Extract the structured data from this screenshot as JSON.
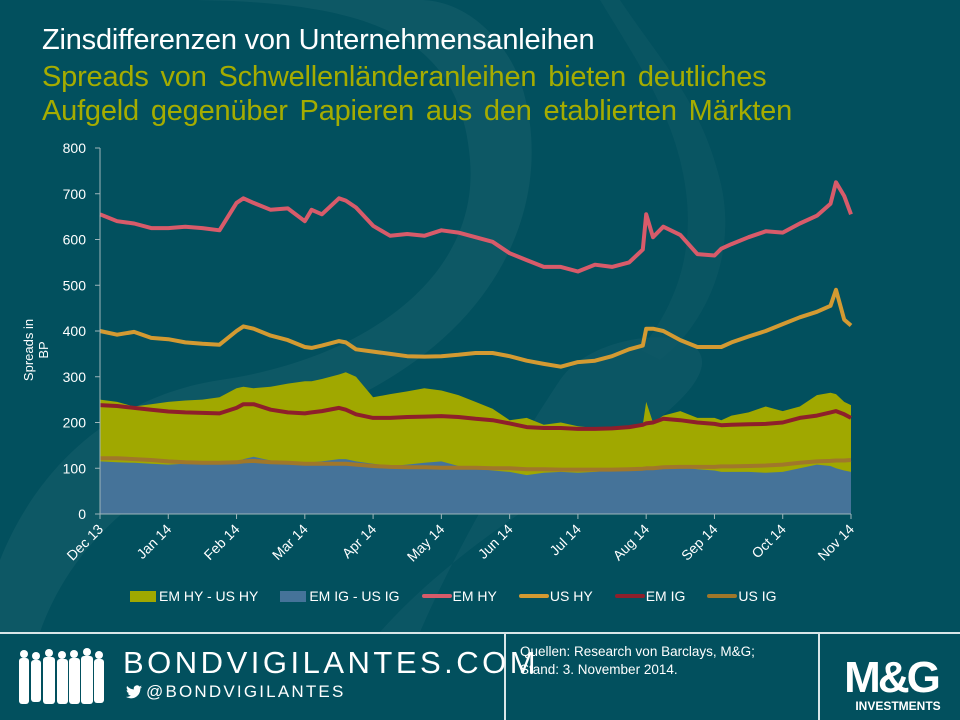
{
  "header": {
    "title": "Zinsdifferenzen von Unternehmensanleihen",
    "subtitle_line1": "Spreads von Schwellenländeranleihen bieten deutliches",
    "subtitle_line2": "Aufgeld gegenüber Papieren aus den etablierten Märkten"
  },
  "colors": {
    "background": "#02505e",
    "title": "#ffffff",
    "subtitle": "#a5ac00",
    "em_hy_us_hy": "#a0a800",
    "em_ig_us_ig": "#457399",
    "em_hy": "#d85b6a",
    "us_hy": "#d39a32",
    "em_ig": "#8e1f2b",
    "us_ig": "#a0772a"
  },
  "chart_data": {
    "type": "area",
    "title": "Zinsdifferenzen von Unternehmensanleihen",
    "xlabel": "",
    "ylabel": "Spreads in BP",
    "ylim": [
      0,
      800
    ],
    "yticks": [
      0,
      100,
      200,
      300,
      400,
      500,
      600,
      700,
      800
    ],
    "xlim": [
      0,
      11
    ],
    "xtick_positions": [
      0,
      1,
      2,
      3,
      4,
      5,
      6,
      7,
      8,
      9,
      10,
      11
    ],
    "xtick_labels": [
      "Dec 13",
      "Jan 14",
      "Feb 14",
      "Mar 14",
      "Apr 14",
      "May 14",
      "Jun 14",
      "Jul 14",
      "Aug 14",
      "Sep 14",
      "Oct 14",
      "Nov 14"
    ],
    "grid": false,
    "legend_position": "bottom",
    "x": [
      0,
      0.25,
      0.5,
      0.75,
      1,
      1.25,
      1.5,
      1.75,
      2,
      2.1,
      2.25,
      2.5,
      2.75,
      3,
      3.1,
      3.25,
      3.5,
      3.6,
      3.75,
      4,
      4.25,
      4.5,
      4.75,
      5,
      5.25,
      5.5,
      5.75,
      6,
      6.25,
      6.5,
      6.75,
      7,
      7.25,
      7.5,
      7.75,
      7.95,
      8,
      8.1,
      8.25,
      8.5,
      8.75,
      9,
      9.1,
      9.25,
      9.5,
      9.75,
      10,
      10.25,
      10.5,
      10.7,
      10.78,
      10.9,
      11
    ],
    "series": [
      {
        "name": "EM HY - US HY",
        "kind": "area",
        "values": [
          250,
          245,
          235,
          240,
          245,
          248,
          250,
          255,
          275,
          278,
          275,
          278,
          285,
          290,
          290,
          295,
          305,
          310,
          300,
          255,
          262,
          268,
          275,
          270,
          260,
          245,
          230,
          205,
          210,
          195,
          200,
          192,
          188,
          190,
          192,
          195,
          245,
          200,
          215,
          225,
          210,
          210,
          205,
          215,
          222,
          235,
          225,
          235,
          260,
          265,
          262,
          245,
          238
        ]
      },
      {
        "name": "EM IG - US IG",
        "kind": "area",
        "values": [
          115,
          113,
          112,
          110,
          108,
          110,
          112,
          110,
          112,
          120,
          125,
          117,
          113,
          110,
          113,
          115,
          120,
          120,
          115,
          110,
          105,
          108,
          112,
          115,
          105,
          100,
          95,
          92,
          85,
          90,
          92,
          90,
          92,
          95,
          98,
          97,
          97,
          100,
          105,
          102,
          98,
          95,
          92,
          92,
          92,
          90,
          92,
          100,
          108,
          105,
          100,
          95,
          92
        ]
      },
      {
        "name": "EM HY",
        "kind": "line",
        "values": [
          655,
          640,
          635,
          625,
          625,
          628,
          625,
          620,
          680,
          690,
          680,
          665,
          668,
          640,
          665,
          655,
          690,
          685,
          670,
          630,
          608,
          612,
          608,
          620,
          615,
          605,
          595,
          570,
          555,
          540,
          540,
          530,
          545,
          540,
          550,
          578,
          655,
          605,
          628,
          610,
          568,
          565,
          580,
          590,
          605,
          618,
          615,
          635,
          652,
          678,
          725,
          695,
          655
        ]
      },
      {
        "name": "US HY",
        "kind": "line",
        "values": [
          400,
          392,
          398,
          385,
          382,
          375,
          372,
          370,
          400,
          410,
          405,
          390,
          380,
          365,
          363,
          368,
          378,
          375,
          360,
          355,
          350,
          345,
          344,
          345,
          348,
          352,
          352,
          345,
          335,
          328,
          322,
          332,
          335,
          345,
          360,
          368,
          405,
          405,
          400,
          380,
          365,
          365,
          365,
          375,
          388,
          400,
          415,
          430,
          442,
          455,
          490,
          425,
          412
        ]
      },
      {
        "name": "EM IG",
        "kind": "line",
        "values": [
          238,
          236,
          232,
          228,
          224,
          222,
          221,
          220,
          232,
          240,
          240,
          228,
          222,
          220,
          222,
          225,
          232,
          228,
          218,
          210,
          210,
          212,
          213,
          214,
          212,
          208,
          205,
          198,
          190,
          188,
          188,
          186,
          186,
          187,
          190,
          195,
          198,
          200,
          208,
          205,
          200,
          197,
          194,
          195,
          196,
          197,
          200,
          210,
          215,
          222,
          225,
          218,
          210
        ]
      },
      {
        "name": "US IG",
        "kind": "line",
        "values": [
          122,
          122,
          120,
          118,
          115,
          113,
          112,
          112,
          113,
          115,
          116,
          113,
          112,
          110,
          110,
          110,
          110,
          110,
          108,
          105,
          103,
          102,
          102,
          101,
          101,
          101,
          100,
          100,
          98,
          98,
          97,
          97,
          97,
          97,
          98,
          99,
          100,
          100,
          102,
          103,
          103,
          103,
          104,
          104,
          105,
          106,
          108,
          112,
          115,
          116,
          117,
          117,
          118
        ]
      }
    ],
    "legend": [
      "EM HY - US HY",
      "EM IG - US IG",
      "EM HY",
      "US HY",
      "EM IG",
      "US IG"
    ]
  },
  "footer": {
    "brand": "BONDVIGILANTES.COM",
    "twitter_handle": "@BONDVIGILANTES",
    "sources_line1": "Quellen: Research von Barclays, M&G;",
    "sources_line2": "Stand: 3. November 2014.",
    "logo_main": "M&G",
    "logo_sub": "INVESTMENTS"
  }
}
